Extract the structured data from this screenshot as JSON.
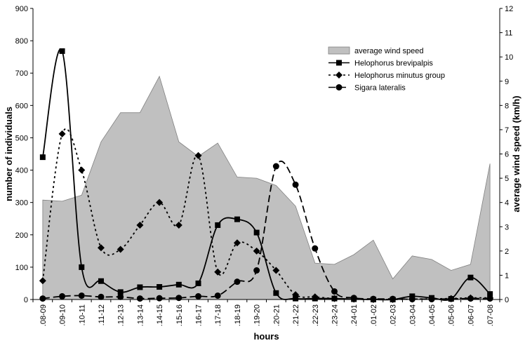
{
  "chart_data": {
    "type": "line",
    "categories": [
      ".08-09",
      ".09-10",
      ".10-11",
      ".11-12",
      ".12-13",
      ".13-14",
      ".14-15",
      ".15-16",
      ".16-17",
      ".17-18",
      ".18-19",
      ".19-20",
      ".20-21",
      ".21-22",
      ".22-23",
      ".23-24",
      ".24-01",
      ".01-02",
      ".02-03",
      ".03-04",
      ".04-05",
      ".05-06",
      ".06-07",
      ".07-08"
    ],
    "xlabel": "hours",
    "ylabel": "number of individuals",
    "y2label": "average wind speed (km/h)",
    "ylim": [
      0,
      900
    ],
    "yticks": [
      0,
      100,
      200,
      300,
      400,
      500,
      600,
      700,
      800,
      900
    ],
    "y2lim": [
      0,
      12
    ],
    "y2ticks": [
      0,
      1,
      2,
      3,
      4,
      5,
      6,
      7,
      8,
      9,
      10,
      11,
      12
    ],
    "grid": false,
    "legend_position": "top-right",
    "area_color": "#c0c0c0",
    "series": [
      {
        "name": "average wind speed",
        "kind": "area",
        "axis": "y2",
        "values": [
          4.1,
          4.05,
          4.3,
          6.5,
          7.7,
          7.7,
          9.2,
          6.5,
          5.9,
          6.45,
          5.05,
          5.0,
          4.7,
          3.85,
          1.5,
          1.45,
          1.85,
          2.45,
          0.85,
          1.8,
          1.65,
          1.2,
          1.45,
          5.6
        ]
      },
      {
        "name": "Helophorus brevipalpis",
        "kind": "line",
        "axis": "y",
        "marker": "square",
        "dash": "solid",
        "values": [
          440,
          768,
          100,
          57,
          23,
          38,
          39,
          46,
          50,
          230,
          248,
          207,
          20,
          3,
          3,
          3,
          1,
          0,
          0,
          10,
          5,
          2,
          68,
          17
        ]
      },
      {
        "name": "Helophorus minutus group",
        "kind": "line",
        "axis": "y",
        "marker": "diamond",
        "dash": "dotted",
        "values": [
          58,
          512,
          400,
          160,
          155,
          230,
          300,
          230,
          445,
          85,
          175,
          150,
          90,
          15,
          8,
          3,
          1,
          0,
          0,
          1,
          2,
          3,
          5,
          5
        ]
      },
      {
        "name": "Sigara lateralis",
        "kind": "line",
        "axis": "y",
        "marker": "circle",
        "dash": "dashed",
        "values": [
          3,
          10,
          12,
          8,
          8,
          3,
          4,
          5,
          10,
          12,
          55,
          90,
          412,
          355,
          158,
          25,
          5,
          2,
          2,
          1,
          1,
          2,
          3,
          3
        ]
      }
    ]
  }
}
